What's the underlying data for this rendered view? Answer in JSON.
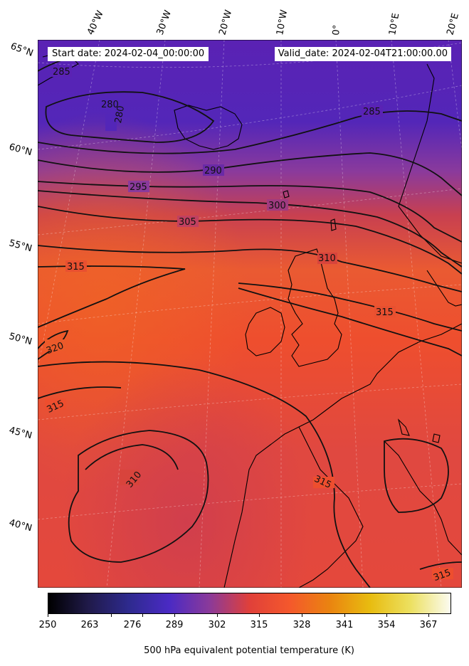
{
  "header": {
    "start_date": "Start date: 2024-02-04_00:00:00",
    "valid_date": "Valid_date: 2024-02-04T21:00:00.00"
  },
  "map": {
    "projection": "conic",
    "field": "500 hPa equivalent potential temperature",
    "lon_labels": [
      "40°W",
      "30°W",
      "20°W",
      "10°W",
      "0°",
      "10°E",
      "20°E"
    ],
    "lat_labels": [
      "65°N",
      "60°N",
      "55°N",
      "50°N",
      "45°N",
      "40°N"
    ],
    "contour_labels": [
      "285",
      "280",
      "280",
      "285",
      "290",
      "295",
      "300",
      "305",
      "310",
      "315",
      "315",
      "320",
      "315",
      "310",
      "315",
      "315"
    ],
    "colors": {
      "low": "#4a2ac4",
      "mid": "#d8443c",
      "high": "#f4582c",
      "contour": "#111111",
      "coast": "#000000"
    }
  },
  "colorbar": {
    "ticks": [
      "250",
      "263",
      "276",
      "289",
      "302",
      "315",
      "328",
      "341",
      "354",
      "367"
    ],
    "label": "500 hPa equivalent potential temperature (K)",
    "colormap": "CMRmap-like"
  }
}
